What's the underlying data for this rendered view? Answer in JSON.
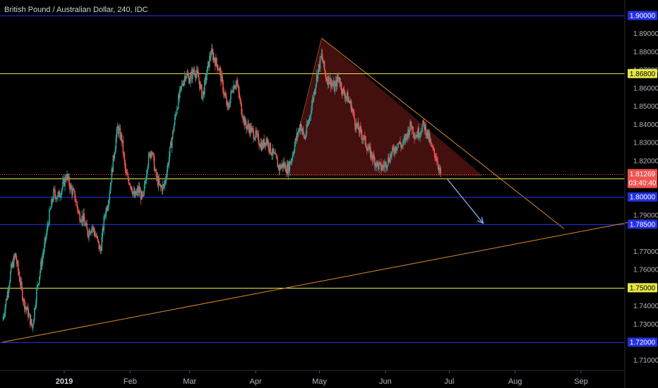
{
  "colors": {
    "background": "#000000",
    "blue_level": "#2430e0",
    "yellow_level": "#e6e64a",
    "trendline": "#d98a2e",
    "triangle_fill": "#5a1414",
    "candle_up": "#26a69a",
    "candle_down": "#ef5350",
    "arrow": "#8aa2e8",
    "current_price": "#ef5350"
  },
  "chart_data": {
    "type": "candlestick",
    "title": "British Pound / Australian Dollar, 240, IDC",
    "ylim": [
      1.705,
      1.9035
    ],
    "y_ticks": [
      "1.89000",
      "1.88000",
      "1.87000",
      "1.86000",
      "1.85000",
      "1.84000",
      "1.83000",
      "1.82000",
      "1.79000",
      "1.77000",
      "1.76000",
      "1.74000",
      "1.73000",
      "1.71000"
    ],
    "x_ticks": [
      {
        "label": "2019",
        "date": "2019-01-01",
        "bold": true
      },
      {
        "label": "Feb",
        "date": "2019-02-01"
      },
      {
        "label": "Mar",
        "date": "2019-03-01"
      },
      {
        "label": "Apr",
        "date": "2019-04-01"
      },
      {
        "label": "May",
        "date": "2019-05-01"
      },
      {
        "label": "Jun",
        "date": "2019-06-01"
      },
      {
        "label": "Jul",
        "date": "2019-07-01"
      },
      {
        "label": "Aug",
        "date": "2019-08-01"
      },
      {
        "label": "Sep",
        "date": "2019-09-01"
      }
    ],
    "horizontal_levels": [
      {
        "price": 1.9,
        "label": "1.90000",
        "color": "blue"
      },
      {
        "price": 1.868,
        "label": "1.86800",
        "color": "yellow"
      },
      {
        "price": 1.81,
        "label": "1.81000",
        "color": "yellow"
      },
      {
        "price": 1.8,
        "label": "1.80000",
        "color": "blue"
      },
      {
        "price": 1.785,
        "label": "1.78500",
        "color": "blue"
      },
      {
        "price": 1.75,
        "label": "1.75000",
        "color": "yellow"
      },
      {
        "price": 1.72,
        "label": "1.72000",
        "color": "blue"
      }
    ],
    "current_price": {
      "price": 1.81269,
      "label": "1.81269",
      "countdown": "03:40:40"
    },
    "price_path": [
      [
        "2018-12-03",
        1.732
      ],
      [
        "2018-12-05",
        1.745
      ],
      [
        "2018-12-07",
        1.76
      ],
      [
        "2018-12-09",
        1.768
      ],
      [
        "2018-12-11",
        1.755
      ],
      [
        "2018-12-13",
        1.742
      ],
      [
        "2018-12-15",
        1.736
      ],
      [
        "2018-12-17",
        1.728
      ],
      [
        "2018-12-19",
        1.748
      ],
      [
        "2018-12-21",
        1.762
      ],
      [
        "2018-12-23",
        1.775
      ],
      [
        "2018-12-25",
        1.79
      ],
      [
        "2018-12-27",
        1.802
      ],
      [
        "2018-12-29",
        1.8
      ],
      [
        "2018-12-31",
        1.805
      ],
      [
        "2019-01-02",
        1.812
      ],
      [
        "2019-01-04",
        1.805
      ],
      [
        "2019-01-06",
        1.8
      ],
      [
        "2019-01-08",
        1.79
      ],
      [
        "2019-01-10",
        1.788
      ],
      [
        "2019-01-12",
        1.78
      ],
      [
        "2019-01-14",
        1.784
      ],
      [
        "2019-01-16",
        1.778
      ],
      [
        "2019-01-18",
        1.77
      ],
      [
        "2019-01-20",
        1.79
      ],
      [
        "2019-01-22",
        1.8
      ],
      [
        "2019-01-24",
        1.82
      ],
      [
        "2019-01-26",
        1.838
      ],
      [
        "2019-01-28",
        1.832
      ],
      [
        "2019-01-30",
        1.812
      ],
      [
        "2019-02-01",
        1.808
      ],
      [
        "2019-02-03",
        1.8
      ],
      [
        "2019-02-05",
        1.804
      ],
      [
        "2019-02-07",
        1.798
      ],
      [
        "2019-02-09",
        1.818
      ],
      [
        "2019-02-11",
        1.827
      ],
      [
        "2019-02-13",
        1.812
      ],
      [
        "2019-02-15",
        1.805
      ],
      [
        "2019-02-17",
        1.806
      ],
      [
        "2019-02-19",
        1.82
      ],
      [
        "2019-02-21",
        1.835
      ],
      [
        "2019-02-23",
        1.85
      ],
      [
        "2019-02-25",
        1.86
      ],
      [
        "2019-02-27",
        1.868
      ],
      [
        "2019-03-01",
        1.865
      ],
      [
        "2019-03-03",
        1.87
      ],
      [
        "2019-03-05",
        1.866
      ],
      [
        "2019-03-07",
        1.855
      ],
      [
        "2019-03-09",
        1.868
      ],
      [
        "2019-03-11",
        1.88
      ],
      [
        "2019-03-13",
        1.875
      ],
      [
        "2019-03-15",
        1.87
      ],
      [
        "2019-03-17",
        1.858
      ],
      [
        "2019-03-19",
        1.848
      ],
      [
        "2019-03-21",
        1.86
      ],
      [
        "2019-03-23",
        1.864
      ],
      [
        "2019-03-25",
        1.85
      ],
      [
        "2019-03-27",
        1.84
      ],
      [
        "2019-03-29",
        1.838
      ],
      [
        "2019-03-31",
        1.835
      ],
      [
        "2019-04-02",
        1.832
      ],
      [
        "2019-04-04",
        1.828
      ],
      [
        "2019-04-06",
        1.832
      ],
      [
        "2019-04-08",
        1.826
      ],
      [
        "2019-04-10",
        1.822
      ],
      [
        "2019-04-12",
        1.816
      ],
      [
        "2019-04-14",
        1.818
      ],
      [
        "2019-04-16",
        1.815
      ],
      [
        "2019-04-18",
        1.822
      ],
      [
        "2019-04-20",
        1.832
      ],
      [
        "2019-04-22",
        1.84
      ],
      [
        "2019-04-24",
        1.832
      ],
      [
        "2019-04-26",
        1.842
      ],
      [
        "2019-04-28",
        1.855
      ],
      [
        "2019-04-30",
        1.868
      ],
      [
        "2019-05-02",
        1.878
      ],
      [
        "2019-05-04",
        1.866
      ],
      [
        "2019-05-06",
        1.864
      ],
      [
        "2019-05-08",
        1.86
      ],
      [
        "2019-05-10",
        1.866
      ],
      [
        "2019-05-12",
        1.858
      ],
      [
        "2019-05-14",
        1.855
      ],
      [
        "2019-05-16",
        1.85
      ],
      [
        "2019-05-18",
        1.84
      ],
      [
        "2019-05-20",
        1.836
      ],
      [
        "2019-05-22",
        1.832
      ],
      [
        "2019-05-24",
        1.826
      ],
      [
        "2019-05-26",
        1.822
      ],
      [
        "2019-05-28",
        1.818
      ],
      [
        "2019-05-30",
        1.816
      ],
      [
        "2019-06-01",
        1.818
      ],
      [
        "2019-06-03",
        1.822
      ],
      [
        "2019-06-05",
        1.826
      ],
      [
        "2019-06-07",
        1.83
      ],
      [
        "2019-06-09",
        1.828
      ],
      [
        "2019-06-11",
        1.834
      ],
      [
        "2019-06-13",
        1.84
      ],
      [
        "2019-06-15",
        1.834
      ],
      [
        "2019-06-17",
        1.836
      ],
      [
        "2019-06-19",
        1.84
      ],
      [
        "2019-06-21",
        1.834
      ],
      [
        "2019-06-23",
        1.826
      ],
      [
        "2019-06-25",
        1.822
      ],
      [
        "2019-06-27",
        1.812
      ]
    ],
    "triangle": {
      "apex": [
        "2019-05-02",
        1.8875
      ],
      "base_left": [
        "2019-04-16",
        1.8115
      ],
      "base_right": [
        "2019-07-17",
        1.8115
      ],
      "hypotenuse_end": [
        "2019-08-24",
        1.7825
      ]
    },
    "rising_trendline": {
      "start": [
        "2018-12-03",
        1.72
      ],
      "end": [
        "2019-09-30",
        1.7875
      ]
    },
    "arrow": {
      "from": [
        "2019-06-30",
        1.81
      ],
      "to": [
        "2019-07-17",
        1.7855
      ]
    }
  }
}
